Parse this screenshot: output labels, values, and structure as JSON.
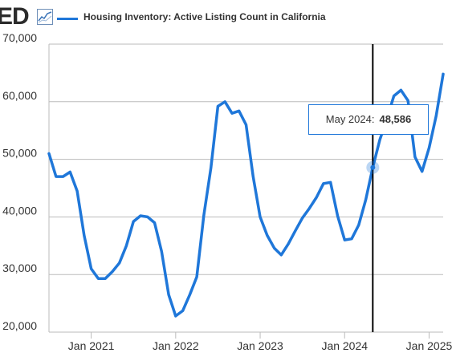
{
  "header": {
    "logo_text": "ED",
    "logo_icon": "sparkline-icon"
  },
  "colors": {
    "series": "#1f77d9",
    "grid": "#bbbbbb",
    "crosshair": "#000000",
    "text": "#333333"
  },
  "chart_data": {
    "type": "line",
    "series": [
      {
        "name": "Housing Inventory: Active Listing Count in California",
        "x": [
          "2020-07",
          "2020-08",
          "2020-09",
          "2020-10",
          "2020-11",
          "2020-12",
          "2021-01",
          "2021-02",
          "2021-03",
          "2021-04",
          "2021-05",
          "2021-06",
          "2021-07",
          "2021-08",
          "2021-09",
          "2021-10",
          "2021-11",
          "2021-12",
          "2022-01",
          "2022-02",
          "2022-03",
          "2022-04",
          "2022-05",
          "2022-06",
          "2022-07",
          "2022-08",
          "2022-09",
          "2022-10",
          "2022-11",
          "2022-12",
          "2023-01",
          "2023-02",
          "2023-03",
          "2023-04",
          "2023-05",
          "2023-06",
          "2023-07",
          "2023-08",
          "2023-09",
          "2023-10",
          "2023-11",
          "2023-12",
          "2024-01",
          "2024-02",
          "2024-03",
          "2024-04",
          "2024-05",
          "2024-06",
          "2024-07",
          "2024-08",
          "2024-09",
          "2024-10",
          "2024-11",
          "2024-12",
          "2025-01",
          "2025-02",
          "2025-03"
        ],
        "values": [
          51000,
          47000,
          47000,
          47800,
          44500,
          36800,
          31000,
          29300,
          29300,
          30500,
          32000,
          35000,
          39200,
          40200,
          40000,
          39000,
          34000,
          26500,
          22800,
          23700,
          26500,
          29600,
          40300,
          48500,
          59200,
          60000,
          58000,
          58400,
          56000,
          47000,
          40000,
          36800,
          34600,
          33400,
          35300,
          37600,
          39800,
          41500,
          43400,
          45800,
          46000,
          40200,
          36000,
          36200,
          38600,
          43000,
          48586,
          53400,
          57000,
          61000,
          62000,
          60200,
          50400,
          47900,
          52000,
          57500,
          64800
        ]
      }
    ],
    "x_ticks": [
      "Jan 2021",
      "Jan 2022",
      "Jan 2023",
      "Jan 2024",
      "Jan 2025"
    ],
    "y_ticks": [
      "20,000",
      "30,000",
      "40,000",
      "50,000",
      "60,000",
      "70,000"
    ],
    "ylim": [
      20000,
      70000
    ],
    "grid": "horizontal",
    "legend": "top-left",
    "tooltip": {
      "label": "May 2024:",
      "value": "48,586",
      "index": 46
    }
  }
}
